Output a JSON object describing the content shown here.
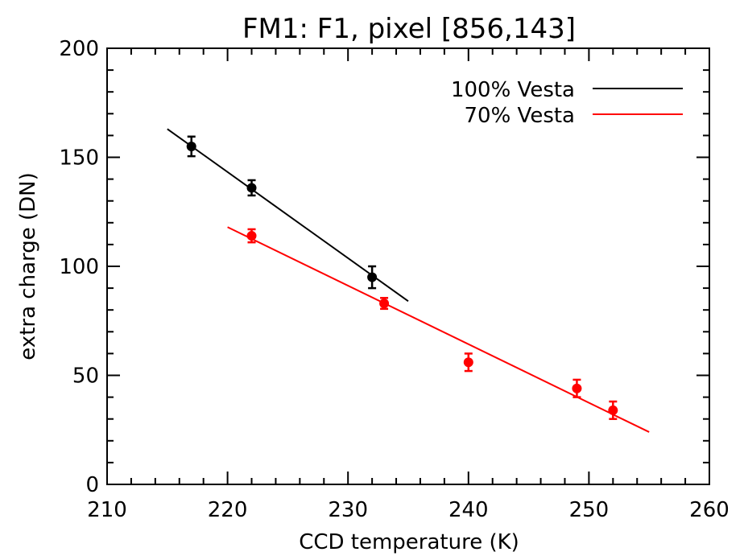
{
  "chart_data": {
    "type": "scatter",
    "title": "FM1: F1, pixel [856,143]",
    "xlabel": "CCD temperature (K)",
    "ylabel": "extra charge (DN)",
    "xlim": [
      210,
      260
    ],
    "ylim": [
      0,
      200
    ],
    "x_ticks": [
      "210",
      "220",
      "230",
      "240",
      "250",
      "260"
    ],
    "y_ticks": [
      "0",
      "50",
      "100",
      "150",
      "200"
    ],
    "x_tick_values": [
      210,
      220,
      230,
      240,
      250,
      260
    ],
    "y_tick_values": [
      0,
      50,
      100,
      150,
      200
    ],
    "x_minor_step": 2,
    "y_minor_step": 10,
    "grid": false,
    "legend_position": "top-right",
    "series": [
      {
        "name": "100% Vesta",
        "color": "#000000",
        "points": [
          {
            "x": 217,
            "y": 155,
            "err": 4.5
          },
          {
            "x": 222,
            "y": 136,
            "err": 3.5
          },
          {
            "x": 232,
            "y": 95,
            "err": 5
          }
        ],
        "fit": {
          "x": [
            215,
            235
          ],
          "y": [
            163,
            84
          ]
        }
      },
      {
        "name": "70% Vesta",
        "color": "#ff0000",
        "points": [
          {
            "x": 222,
            "y": 114,
            "err": 3
          },
          {
            "x": 233,
            "y": 83,
            "err": 2.5
          },
          {
            "x": 240,
            "y": 56,
            "err": 4
          },
          {
            "x": 249,
            "y": 44,
            "err": 4
          },
          {
            "x": 252,
            "y": 34,
            "err": 4
          }
        ],
        "fit": {
          "x": [
            220,
            255
          ],
          "y": [
            118,
            24
          ]
        }
      }
    ]
  }
}
